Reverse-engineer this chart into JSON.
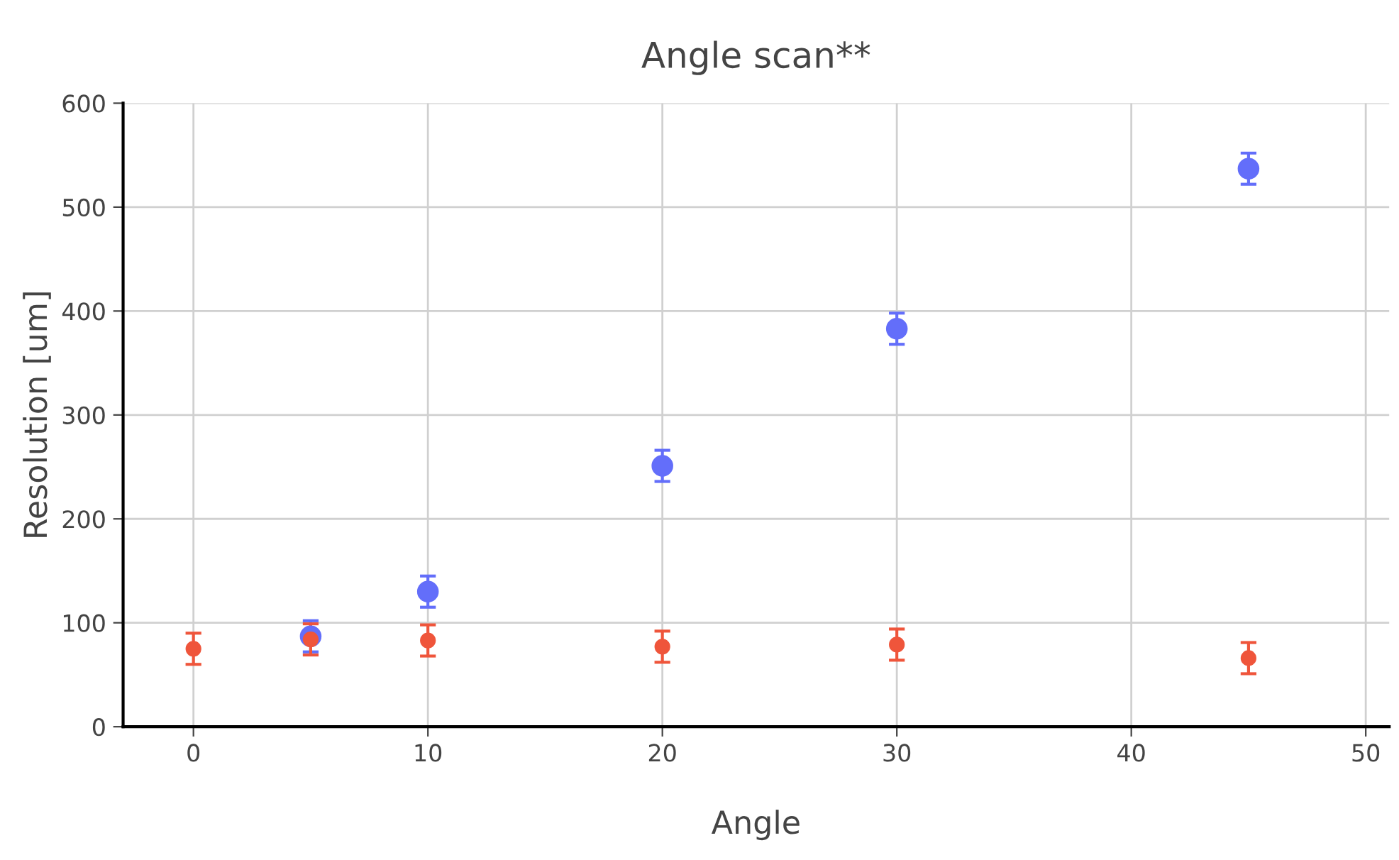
{
  "chart_data": {
    "type": "scatter",
    "title": "Angle scan**",
    "xlabel": "Angle",
    "ylabel": "Resolution [um]",
    "x": [
      0,
      5,
      10,
      20,
      30,
      45
    ],
    "series": [
      {
        "color": "#636efa",
        "values": [
          null,
          87,
          130,
          251,
          383,
          537
        ],
        "errors": [
          null,
          15,
          15,
          15,
          15,
          15
        ]
      },
      {
        "color": "#ef553b",
        "values": [
          75,
          84,
          83,
          77,
          79,
          66
        ],
        "errors": [
          15,
          15,
          15,
          15,
          15,
          15
        ]
      }
    ],
    "xlim": [
      -3,
      51
    ],
    "xticks": [
      0,
      10,
      20,
      30,
      40,
      50
    ],
    "ylim": [
      0,
      600
    ],
    "yticks": [
      0,
      100,
      200,
      300,
      400,
      500,
      600
    ],
    "grid": true,
    "marker": "circle"
  }
}
